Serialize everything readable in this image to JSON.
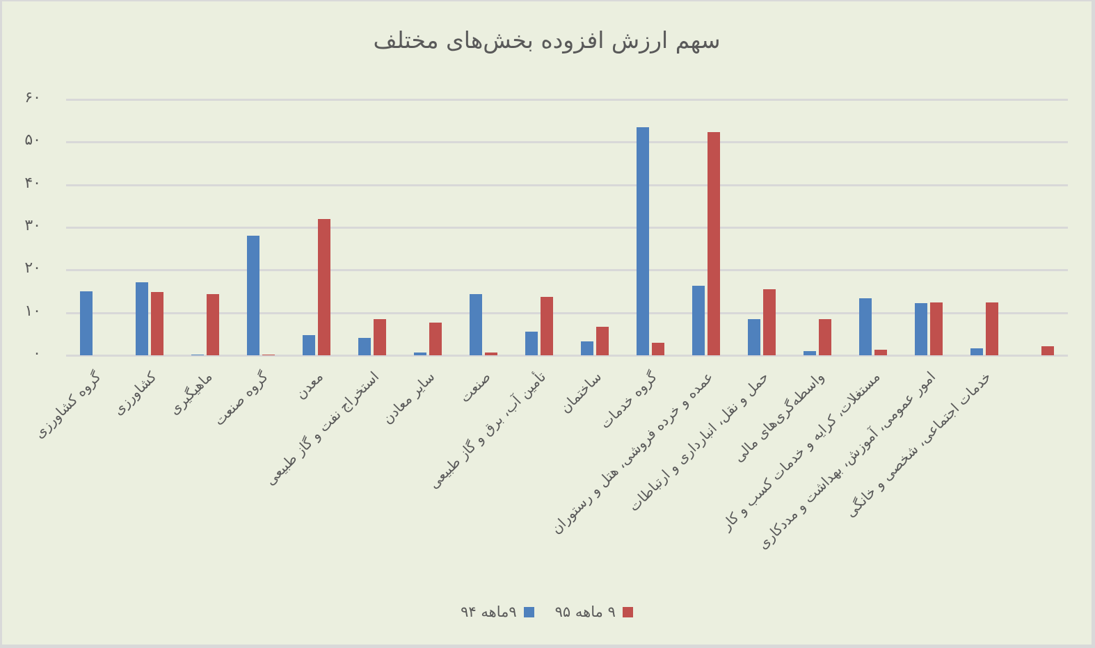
{
  "chart_data": {
    "type": "bar",
    "title": "سهم ارزش افزوده بخش‌های مختلف",
    "xlabel": "",
    "ylabel": "",
    "ylim": [
      0,
      60
    ],
    "yticks": [
      0,
      10,
      20,
      30,
      40,
      50,
      60
    ],
    "ytick_labels": [
      "۰",
      "۱۰",
      "۲۰",
      "۳۰",
      "۴۰",
      "۵۰",
      "۶۰"
    ],
    "grid": true,
    "legend_position": "bottom",
    "categories": [
      "گروه کشاورزی",
      "کشاورزی",
      "ماهیگیری",
      "گروه صنعت",
      "معدن",
      "استخراج نفت و گاز طبیعی",
      "سایر معادن",
      "صنعت",
      "تأمین آب، برق و گاز طبیعی",
      "ساختمان",
      "گروه خدمات",
      "عمده و خرده فروشی، هتل و رستوران",
      "حمل و نقل، انبارداری و ارتباطات",
      "واسطه‌گری‌های مالی",
      "مستغلات، کرایه و خدمات کسب و کار",
      "امور عمومی، آموزش، بهداشت و مددکاری",
      "خدمات اجتماعی، شخصی و خانگی",
      ""
    ],
    "series": [
      {
        "name": "۹ماهه ۹۴",
        "color": "#4f81bd",
        "values": [
          15.0,
          17.2,
          0.2,
          28.1,
          4.8,
          4.0,
          0.6,
          14.3,
          5.5,
          3.3,
          53.4,
          16.3,
          8.5,
          1.0,
          13.3,
          12.2,
          1.7,
          0
        ]
      },
      {
        "name": "۹ ماهه ۹۵",
        "color": "#c0504d",
        "values": [
          0,
          14.8,
          14.3,
          0.2,
          32.0,
          8.5,
          7.6,
          0.7,
          13.7,
          6.7,
          2.9,
          52.4,
          15.5,
          8.4,
          1.3,
          12.4,
          12.4,
          2.1
        ]
      }
    ]
  }
}
